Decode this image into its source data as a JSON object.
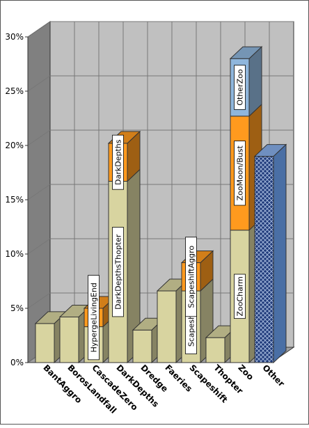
{
  "chart_data": {
    "type": "bar",
    "stacked": true,
    "three_d": true,
    "categories": [
      "BantAggro",
      "BorosLandfall",
      "CascadeZero",
      "DarkDepths",
      "Dredge",
      "Faeries",
      "Scapeshift",
      "Thopter",
      "Zoo",
      "Other"
    ],
    "y_ticks": [
      "0%",
      "5%",
      "10%",
      "15%",
      "20%",
      "25%",
      "30%"
    ],
    "ylim": [
      0,
      30
    ],
    "grid": true,
    "stacks": [
      [
        {
          "value": 3.6,
          "color": "#d8d4a0"
        }
      ],
      [
        {
          "value": 4.2,
          "color": "#d8d4a0"
        }
      ],
      [
        {
          "value": 3.3,
          "color": "#d8d4a0"
        },
        {
          "value": 1.7,
          "color": "#ff9a1e",
          "label": "HypergeLivingEnd"
        }
      ],
      [
        {
          "value": 16.7,
          "color": "#d8d4a0",
          "label": "DarkDepthsThopter"
        },
        {
          "value": 3.5,
          "color": "#ff9a1e",
          "label": "DarkDepths"
        }
      ],
      [
        {
          "value": 3.0,
          "color": "#d8d4a0"
        }
      ],
      [
        {
          "value": 6.6,
          "color": "#d8d4a0"
        }
      ],
      [
        {
          "value": 6.6,
          "color": "#d8d4a0",
          "label": "Scapeshift"
        },
        {
          "value": 2.6,
          "color": "#ff9a1e",
          "label": "ScapeshiftAggro"
        }
      ],
      [
        {
          "value": 2.3,
          "color": "#d8d4a0"
        }
      ],
      [
        {
          "value": 12.2,
          "color": "#d8d4a0",
          "label": "ZooCharm"
        },
        {
          "value": 10.5,
          "color": "#ff9a1e",
          "label": "ZooMoon/Bust"
        },
        {
          "value": 5.3,
          "color": "#8fb6dc",
          "label": "OtherZoo"
        }
      ],
      [
        {
          "value": 19.0,
          "color": "#1f3a7a",
          "pattern": "crosshatch"
        }
      ]
    ],
    "colors": {
      "wall": "#c0c0c0",
      "side_wall": "#808080",
      "floor": "#a0a0a0",
      "grid": "#777777",
      "edge": "#333333"
    }
  }
}
